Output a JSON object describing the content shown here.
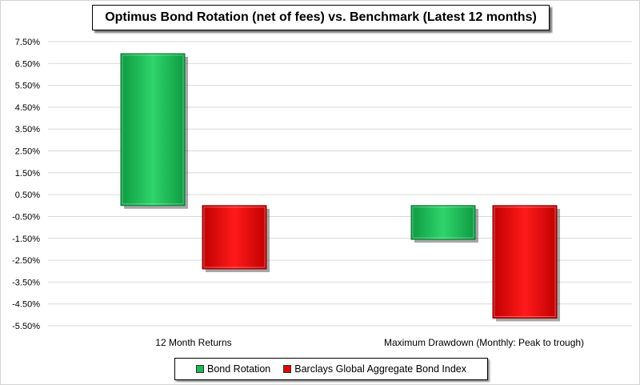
{
  "chart_data": {
    "type": "bar",
    "title": "Optimus Bond Rotation (net of fees) vs. Benchmark (Latest 12 months)",
    "categories": [
      "12 Month Returns",
      "Maximum Drawdown (Monthly: Peak to trough)"
    ],
    "series": [
      {
        "name": "Bond Rotation",
        "values": [
          6.95,
          -1.55
        ],
        "color": "#1db954"
      },
      {
        "name": "Barclays Global Aggregate Bond Index",
        "values": [
          -2.9,
          -5.15
        ],
        "color": "#e00000"
      }
    ],
    "yticks": [
      "7.50%",
      "6.50%",
      "5.50%",
      "4.50%",
      "3.50%",
      "2.50%",
      "1.50%",
      "0.50%",
      "-0.50%",
      "-1.50%",
      "-2.50%",
      "-3.50%",
      "-4.50%",
      "-5.50%"
    ],
    "ylim": [
      -5.5,
      7.5
    ],
    "grid": true,
    "legend_position": "bottom"
  }
}
